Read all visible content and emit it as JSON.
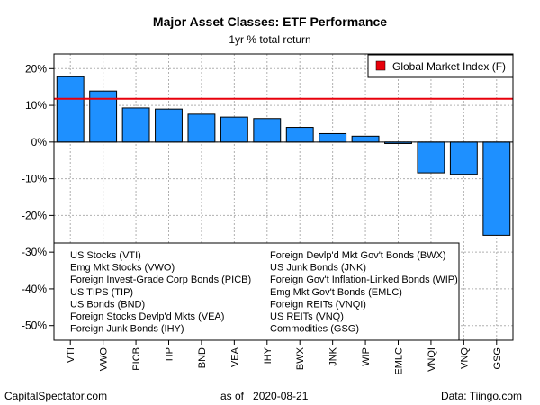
{
  "chart_data": {
    "type": "bar",
    "title": "Major Asset Classes: ETF Performance",
    "subtitle": "1yr % total return",
    "categories": [
      "VTI",
      "VWO",
      "PICB",
      "TIP",
      "BND",
      "VEA",
      "IHY",
      "BWX",
      "JNK",
      "WIP",
      "EMLC",
      "VNQI",
      "VNQ",
      "GSG"
    ],
    "values": [
      17.8,
      13.9,
      9.3,
      9.0,
      7.6,
      6.8,
      6.4,
      4.0,
      2.3,
      1.6,
      -0.4,
      -8.4,
      -8.8,
      -25.4
    ],
    "ylim": [
      -54,
      24
    ],
    "yticks": [
      20,
      10,
      0,
      -10,
      -20,
      -30,
      -40,
      -50
    ],
    "ytick_labels": [
      "20%",
      "10%",
      "0%",
      "-10%",
      "-20%",
      "-30%",
      "-40%",
      "-50%"
    ],
    "reference_line": {
      "label": "Global Market Index (F)",
      "value": 11.8,
      "color": "#e8000b"
    },
    "bar_color": "#1e90ff",
    "grid": true,
    "legend": {
      "placement": "top-right",
      "entries": [
        "Global Market Index (F)"
      ]
    },
    "key_list": {
      "column1": [
        "US Stocks (VTI)",
        "Emg Mkt Stocks (VWO)",
        "Foreign Invest-Grade Corp Bonds (PICB)",
        "US TIPS (TIP)",
        "US Bonds (BND)",
        "Foreign Stocks Devlp'd Mkts (VEA)",
        "Foreign Junk Bonds (IHY)"
      ],
      "column2": [
        "Foreign Devlp'd Mkt Gov't Bonds (BWX)",
        "US Junk Bonds (JNK)",
        "Foreign Gov't Inflation-Linked Bonds (WIP)",
        "Emg Mkt Gov't Bonds (EMLC)",
        "Foreign REITs (VNQI)",
        "US REITs (VNQ)",
        "Commodities (GSG)"
      ]
    }
  },
  "footer": {
    "left": "CapitalSpectator.com",
    "center": "as of   2020-08-21",
    "right": "Data: Tiingo.com"
  }
}
